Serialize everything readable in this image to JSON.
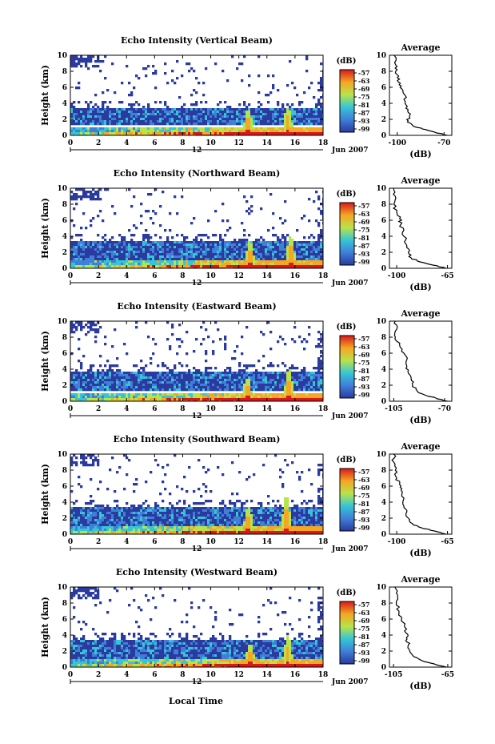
{
  "figure": {
    "xlabel": "Local Time",
    "date_label": "Jun 2007",
    "day_label": "12",
    "colorbar_unit": "(dB)",
    "avg_title": "Average",
    "avg_xlabel": "(dB)",
    "colors": {
      "low": "#2b3a9e",
      "mid_low": "#3f7fd9",
      "mid": "#35c6d6",
      "mid_high": "#b9e34a",
      "high": "#f5a623",
      "max": "#d7191c",
      "ink": "#000000",
      "background": "#ffffff"
    }
  },
  "chart_data": [
    {
      "type": "heatmap",
      "title": "Echo Intensity (Vertical Beam)",
      "ylabel": "Height (km)",
      "xlim": [
        0,
        18
      ],
      "ylim": [
        0,
        10
      ],
      "xticks": [
        "0",
        "2",
        "4",
        "6",
        "8",
        "10",
        "12",
        "14",
        "16",
        "18"
      ],
      "yticks": [
        "0",
        "2",
        "4",
        "6",
        "8",
        "10"
      ],
      "colorbar_ticks": [
        "-57",
        "-63",
        "-69",
        "-75",
        "-81",
        "-87",
        "-93",
        "-99"
      ],
      "cloud_base_km": 2.0,
      "cloud_top_km": 3.6,
      "plumes": [
        {
          "time": 12.6,
          "top_km": 3.2
        },
        {
          "time": 15.4,
          "top_km": 3.6
        }
      ],
      "avg_xticks": [
        "-100",
        "-70"
      ],
      "avg_xlim": [
        -105,
        -65
      ],
      "avg_profile": [
        {
          "h": 0,
          "db": -68
        },
        {
          "h": 0.4,
          "db": -76
        },
        {
          "h": 0.8,
          "db": -84
        },
        {
          "h": 1.2,
          "db": -90
        },
        {
          "h": 1.8,
          "db": -93
        },
        {
          "h": 2.5,
          "db": -92
        },
        {
          "h": 3.2,
          "db": -93
        },
        {
          "h": 4.0,
          "db": -95
        },
        {
          "h": 5.0,
          "db": -95
        },
        {
          "h": 5.8,
          "db": -97
        },
        {
          "h": 6.5,
          "db": -98
        },
        {
          "h": 7.2,
          "db": -100
        },
        {
          "h": 8.0,
          "db": -101
        },
        {
          "h": 8.8,
          "db": -101
        },
        {
          "h": 10,
          "db": -102
        }
      ]
    },
    {
      "type": "heatmap",
      "title": "Echo Intensity (Northward Beam)",
      "ylabel": "Height (km)",
      "xlim": [
        0,
        18
      ],
      "ylim": [
        0,
        10
      ],
      "xticks": [
        "0",
        "2",
        "4",
        "6",
        "8",
        "10",
        "12",
        "14",
        "16",
        "18"
      ],
      "yticks": [
        "0",
        "2",
        "4",
        "6",
        "8",
        "10"
      ],
      "colorbar_ticks": [
        "-57",
        "-63",
        "-69",
        "-75",
        "-81",
        "-87",
        "-93",
        "-99"
      ],
      "cloud_base_km": 1.8,
      "cloud_top_km": 3.5,
      "plumes": [
        {
          "time": 12.7,
          "top_km": 3.4
        },
        {
          "time": 15.6,
          "top_km": 4.2
        }
      ],
      "avg_xticks": [
        "-100",
        "-65"
      ],
      "avg_xlim": [
        -105,
        -62
      ],
      "avg_profile": [
        {
          "h": 0,
          "db": -66
        },
        {
          "h": 0.4,
          "db": -75
        },
        {
          "h": 0.8,
          "db": -84
        },
        {
          "h": 1.3,
          "db": -90
        },
        {
          "h": 2.0,
          "db": -92
        },
        {
          "h": 2.8,
          "db": -93
        },
        {
          "h": 3.5,
          "db": -94
        },
        {
          "h": 4.5,
          "db": -96
        },
        {
          "h": 5.5,
          "db": -97
        },
        {
          "h": 6.2,
          "db": -98
        },
        {
          "h": 7.0,
          "db": -100
        },
        {
          "h": 8.0,
          "db": -102
        },
        {
          "h": 9.0,
          "db": -101
        },
        {
          "h": 10,
          "db": -102
        }
      ]
    },
    {
      "type": "heatmap",
      "title": "Echo Intensity (Eastward Beam)",
      "ylabel": "Height (km)",
      "xlim": [
        0,
        18
      ],
      "ylim": [
        0,
        10
      ],
      "xticks": [
        "0",
        "2",
        "4",
        "6",
        "8",
        "10",
        "12",
        "14",
        "16",
        "18"
      ],
      "yticks": [
        "0",
        "2",
        "4",
        "6",
        "8",
        "10"
      ],
      "colorbar_ticks": [
        "-57",
        "-63",
        "-69",
        "-75",
        "-81",
        "-87",
        "-93",
        "-99"
      ],
      "cloud_base_km": 2.0,
      "cloud_top_km": 3.7,
      "plumes": [
        {
          "time": 12.5,
          "top_km": 3.0
        },
        {
          "time": 15.5,
          "top_km": 4.0
        }
      ],
      "avg_xticks": [
        "-105",
        "-70"
      ],
      "avg_xlim": [
        -108,
        -65
      ],
      "avg_profile": [
        {
          "h": 0,
          "db": -68
        },
        {
          "h": 0.4,
          "db": -76
        },
        {
          "h": 0.8,
          "db": -84
        },
        {
          "h": 1.3,
          "db": -89
        },
        {
          "h": 2.0,
          "db": -92
        },
        {
          "h": 2.8,
          "db": -93
        },
        {
          "h": 3.5,
          "db": -95
        },
        {
          "h": 4.3,
          "db": -96
        },
        {
          "h": 5.2,
          "db": -96
        },
        {
          "h": 6.0,
          "db": -98
        },
        {
          "h": 7.0,
          "db": -101
        },
        {
          "h": 8.0,
          "db": -104
        },
        {
          "h": 9.0,
          "db": -103
        },
        {
          "h": 10,
          "db": -104
        }
      ]
    },
    {
      "type": "heatmap",
      "title": "Echo Intensity (Southward Beam)",
      "ylabel": "Height (km)",
      "xlim": [
        0,
        18
      ],
      "ylim": [
        0,
        10
      ],
      "xticks": [
        "0",
        "2",
        "4",
        "6",
        "8",
        "10",
        "12",
        "14",
        "16",
        "18"
      ],
      "yticks": [
        "0",
        "2",
        "4",
        "6",
        "8",
        "10"
      ],
      "colorbar_ticks": [
        "-57",
        "-63",
        "-69",
        "-75",
        "-81",
        "-87",
        "-93",
        "-99"
      ],
      "cloud_base_km": 1.8,
      "cloud_top_km": 3.6,
      "plumes": [
        {
          "time": 12.6,
          "top_km": 3.5
        },
        {
          "time": 15.3,
          "top_km": 4.8
        }
      ],
      "avg_xticks": [
        "-100",
        "-65"
      ],
      "avg_xlim": [
        -105,
        -62
      ],
      "avg_profile": [
        {
          "h": 0,
          "db": -66
        },
        {
          "h": 0.4,
          "db": -74
        },
        {
          "h": 0.8,
          "db": -83
        },
        {
          "h": 1.3,
          "db": -89
        },
        {
          "h": 2.0,
          "db": -92
        },
        {
          "h": 2.8,
          "db": -93
        },
        {
          "h": 3.5,
          "db": -95
        },
        {
          "h": 4.5,
          "db": -95
        },
        {
          "h": 5.5,
          "db": -97
        },
        {
          "h": 6.2,
          "db": -98
        },
        {
          "h": 7.0,
          "db": -100
        },
        {
          "h": 8.0,
          "db": -101
        },
        {
          "h": 9.0,
          "db": -102
        },
        {
          "h": 10,
          "db": -102
        }
      ]
    },
    {
      "type": "heatmap",
      "title": "Echo Intensity (Westward Beam)",
      "ylabel": "Height (km)",
      "xlim": [
        0,
        18
      ],
      "ylim": [
        0,
        10
      ],
      "xticks": [
        "0",
        "2",
        "4",
        "6",
        "8",
        "10",
        "12",
        "14",
        "16",
        "18"
      ],
      "yticks": [
        "0",
        "2",
        "4",
        "6",
        "8",
        "10"
      ],
      "colorbar_ticks": [
        "-57",
        "-63",
        "-69",
        "-75",
        "-81",
        "-87",
        "-93",
        "-99"
      ],
      "cloud_base_km": 1.9,
      "cloud_top_km": 3.6,
      "plumes": [
        {
          "time": 12.7,
          "top_km": 3.0
        },
        {
          "time": 15.4,
          "top_km": 4.0
        }
      ],
      "avg_xticks": [
        "-105",
        "-65"
      ],
      "avg_xlim": [
        -108,
        -62
      ],
      "avg_profile": [
        {
          "h": 0,
          "db": -66
        },
        {
          "h": 0.4,
          "db": -75
        },
        {
          "h": 0.8,
          "db": -84
        },
        {
          "h": 1.3,
          "db": -90
        },
        {
          "h": 2.0,
          "db": -93
        },
        {
          "h": 2.8,
          "db": -94
        },
        {
          "h": 3.5,
          "db": -95
        },
        {
          "h": 4.3,
          "db": -96
        },
        {
          "h": 5.2,
          "db": -97
        },
        {
          "h": 6.0,
          "db": -99
        },
        {
          "h": 7.0,
          "db": -101
        },
        {
          "h": 8.0,
          "db": -103
        },
        {
          "h": 9.0,
          "db": -102
        },
        {
          "h": 10,
          "db": -104
        }
      ]
    }
  ]
}
